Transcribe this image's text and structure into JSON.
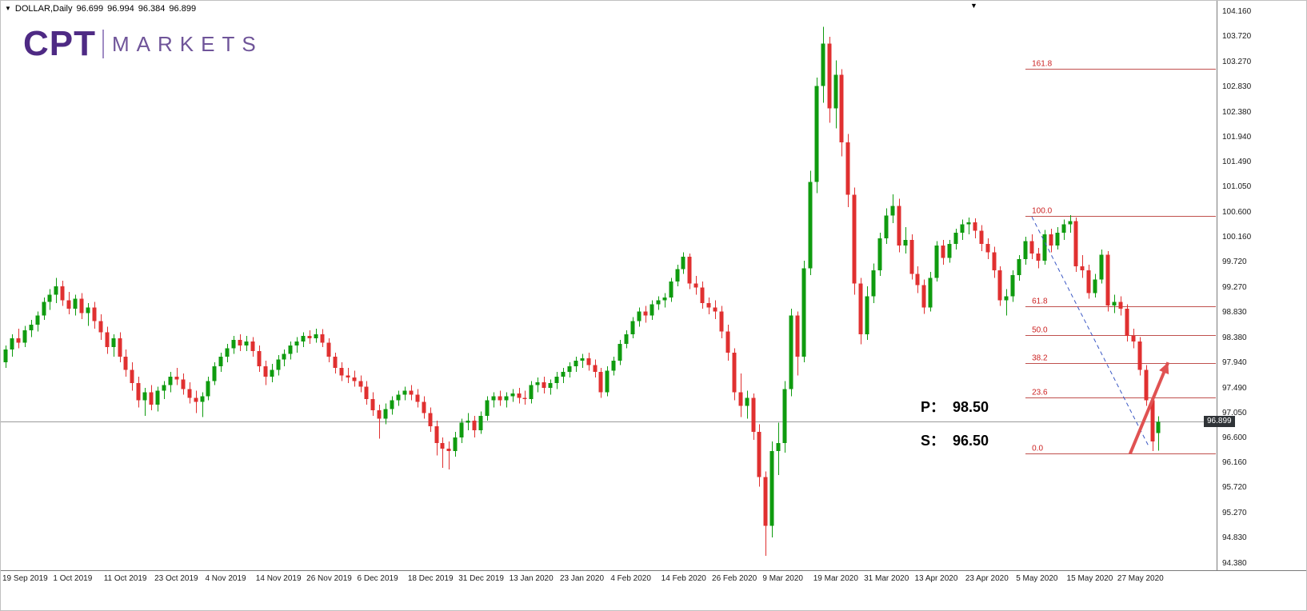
{
  "quote_bar": {
    "expander_icon": "▼",
    "symbol": "DOLLAR,Daily",
    "open": "96.699",
    "high": "96.994",
    "low": "96.384",
    "close": "96.899"
  },
  "logo": {
    "name": "CPT",
    "suffix": "MARKETS",
    "primary_color": "#4e2a84",
    "secondary_color": "#6f5499"
  },
  "chart_markers": {
    "shift_icon": "▼"
  },
  "annotations": {
    "pivot": "P：  98.50",
    "support": "S：  96.50"
  },
  "price_axis": {
    "current_price_label": "96.899"
  },
  "date_axis": {
    "tick_every": 8
  },
  "chart_data": {
    "type": "candlestick",
    "symbol": "DOLLAR",
    "timeframe": "Daily",
    "last_quote": {
      "open": 96.699,
      "high": 96.994,
      "low": 96.384,
      "close": 96.899
    },
    "current_price": 96.899,
    "price_range": [
      94.38,
      104.16
    ],
    "candle_spacing": 7.92,
    "grid": "off",
    "y_tick_labels": [
      "104.160",
      "103.720",
      "103.270",
      "102.830",
      "102.380",
      "101.940",
      "101.490",
      "101.050",
      "100.600",
      "100.160",
      "99.720",
      "99.270",
      "98.830",
      "98.380",
      "97.940",
      "97.490",
      "97.050",
      "96.600",
      "96.160",
      "95.720",
      "95.270",
      "94.830",
      "94.380"
    ],
    "x_tick_labels": [
      "19 Sep 2019",
      "1 Oct 2019",
      "11 Oct 2019",
      "23 Oct 2019",
      "4 Nov 2019",
      "14 Nov 2019",
      "26 Nov 2019",
      "6 Dec 2019",
      "18 Dec 2019",
      "31 Dec 2019",
      "13 Jan 2020",
      "23 Jan 2020",
      "4 Feb 2020",
      "14 Feb 2020",
      "26 Feb 2020",
      "9 Mar 2020",
      "19 Mar 2020",
      "31 Mar 2020",
      "13 Apr 2020",
      "23 Apr 2020",
      "5 May 2020",
      "15 May 2020",
      "27 May 2020"
    ],
    "fib_start_index": 161,
    "fib_levels": [
      {
        "label": "161.8",
        "price": 103.16
      },
      {
        "label": "100.0",
        "price": 100.55
      },
      {
        "label": "61.8",
        "price": 98.94
      },
      {
        "label": "50.0",
        "price": 98.44
      },
      {
        "label": "38.2",
        "price": 97.94
      },
      {
        "label": "23.6",
        "price": 97.33
      },
      {
        "label": "0.0",
        "price": 96.33
      }
    ],
    "trendline": {
      "from": {
        "index": 162,
        "price": 100.53
      },
      "to": {
        "index": 180.5,
        "price": 96.45
      }
    },
    "arrow": {
      "from": {
        "index": 177.5,
        "price": 96.33
      },
      "to": {
        "index": 183.5,
        "price": 97.95
      }
    },
    "support_resistance": {
      "pivot": 98.5,
      "support": 96.5
    },
    "colors": {
      "up": "#0f9b0f",
      "down": "#e03030",
      "fib": "#c0504d",
      "fib_label": "#cc2222",
      "trendline": "#3a57c4",
      "arrow": "#e05252",
      "current_line": "#9a9a9a",
      "badge_bg": "#2f3337"
    },
    "candles": [
      [
        97.95,
        98.25,
        97.85,
        98.18
      ],
      [
        98.18,
        98.45,
        98.05,
        98.38
      ],
      [
        98.38,
        98.55,
        98.2,
        98.3
      ],
      [
        98.3,
        98.6,
        98.22,
        98.52
      ],
      [
        98.52,
        98.7,
        98.4,
        98.62
      ],
      [
        98.62,
        98.85,
        98.5,
        98.78
      ],
      [
        98.78,
        99.1,
        98.7,
        99.02
      ],
      [
        99.02,
        99.25,
        98.88,
        99.15
      ],
      [
        99.15,
        99.45,
        99.0,
        99.3
      ],
      [
        99.3,
        99.4,
        98.95,
        99.05
      ],
      [
        99.05,
        99.2,
        98.8,
        98.9
      ],
      [
        98.9,
        99.15,
        98.78,
        99.08
      ],
      [
        99.08,
        99.18,
        98.72,
        98.82
      ],
      [
        98.82,
        99.0,
        98.6,
        98.92
      ],
      [
        98.92,
        99.02,
        98.55,
        98.68
      ],
      [
        98.68,
        98.8,
        98.35,
        98.48
      ],
      [
        98.48,
        98.58,
        98.1,
        98.22
      ],
      [
        98.22,
        98.45,
        98.05,
        98.38
      ],
      [
        98.38,
        98.48,
        97.95,
        98.05
      ],
      [
        98.05,
        98.18,
        97.7,
        97.82
      ],
      [
        97.82,
        97.95,
        97.45,
        97.58
      ],
      [
        97.58,
        97.7,
        97.15,
        97.28
      ],
      [
        97.28,
        97.5,
        97.0,
        97.42
      ],
      [
        97.42,
        97.55,
        97.1,
        97.2
      ],
      [
        97.2,
        97.52,
        97.08,
        97.45
      ],
      [
        97.45,
        97.62,
        97.3,
        97.55
      ],
      [
        97.55,
        97.78,
        97.42,
        97.7
      ],
      [
        97.7,
        97.85,
        97.55,
        97.65
      ],
      [
        97.65,
        97.75,
        97.38,
        97.48
      ],
      [
        97.48,
        97.6,
        97.22,
        97.32
      ],
      [
        97.32,
        97.45,
        97.05,
        97.25
      ],
      [
        97.25,
        97.42,
        96.98,
        97.35
      ],
      [
        97.35,
        97.7,
        97.28,
        97.62
      ],
      [
        97.62,
        97.95,
        97.55,
        97.88
      ],
      [
        97.88,
        98.12,
        97.78,
        98.05
      ],
      [
        98.05,
        98.28,
        97.95,
        98.2
      ],
      [
        98.2,
        98.42,
        98.1,
        98.35
      ],
      [
        98.35,
        98.45,
        98.15,
        98.25
      ],
      [
        98.25,
        98.42,
        98.15,
        98.32
      ],
      [
        98.32,
        98.4,
        98.05,
        98.15
      ],
      [
        98.15,
        98.25,
        97.78,
        97.88
      ],
      [
        97.88,
        97.98,
        97.55,
        97.7
      ],
      [
        97.7,
        97.92,
        97.6,
        97.82
      ],
      [
        97.82,
        98.08,
        97.72,
        98.0
      ],
      [
        98.0,
        98.18,
        97.88,
        98.1
      ],
      [
        98.1,
        98.32,
        98.0,
        98.25
      ],
      [
        98.25,
        98.4,
        98.12,
        98.32
      ],
      [
        98.32,
        98.48,
        98.22,
        98.42
      ],
      [
        98.42,
        98.52,
        98.28,
        98.38
      ],
      [
        98.38,
        98.55,
        98.3,
        98.45
      ],
      [
        98.45,
        98.54,
        98.22,
        98.3
      ],
      [
        98.3,
        98.38,
        97.95,
        98.05
      ],
      [
        98.05,
        98.12,
        97.75,
        97.85
      ],
      [
        97.85,
        97.95,
        97.62,
        97.72
      ],
      [
        97.72,
        97.85,
        97.58,
        97.68
      ],
      [
        97.68,
        97.8,
        97.52,
        97.62
      ],
      [
        97.62,
        97.72,
        97.42,
        97.52
      ],
      [
        97.52,
        97.62,
        97.2,
        97.3
      ],
      [
        97.3,
        97.42,
        97.0,
        97.1
      ],
      [
        97.1,
        97.2,
        96.6,
        96.95
      ],
      [
        96.95,
        97.22,
        96.85,
        97.12
      ],
      [
        97.12,
        97.35,
        97.02,
        97.28
      ],
      [
        97.28,
        97.45,
        97.18,
        97.38
      ],
      [
        97.38,
        97.52,
        97.28,
        97.45
      ],
      [
        97.45,
        97.55,
        97.28,
        97.38
      ],
      [
        97.38,
        97.48,
        97.15,
        97.25
      ],
      [
        97.25,
        97.35,
        96.95,
        97.05
      ],
      [
        97.05,
        97.15,
        96.72,
        96.82
      ],
      [
        96.82,
        96.92,
        96.3,
        96.52
      ],
      [
        96.52,
        96.62,
        96.08,
        96.42
      ],
      [
        96.42,
        96.55,
        96.05,
        96.38
      ],
      [
        96.38,
        96.72,
        96.28,
        96.62
      ],
      [
        96.62,
        96.95,
        96.52,
        96.88
      ],
      [
        96.88,
        97.05,
        96.75,
        96.92
      ],
      [
        96.92,
        97.0,
        96.62,
        96.75
      ],
      [
        96.75,
        97.08,
        96.68,
        97.0
      ],
      [
        97.0,
        97.35,
        96.92,
        97.28
      ],
      [
        97.28,
        97.42,
        97.15,
        97.35
      ],
      [
        97.35,
        97.45,
        97.18,
        97.28
      ],
      [
        97.28,
        97.42,
        97.15,
        97.35
      ],
      [
        97.35,
        97.48,
        97.25,
        97.4
      ],
      [
        97.4,
        97.5,
        97.22,
        97.32
      ],
      [
        97.32,
        97.45,
        97.2,
        97.3
      ],
      [
        97.3,
        97.62,
        97.22,
        97.55
      ],
      [
        97.55,
        97.68,
        97.42,
        97.6
      ],
      [
        97.6,
        97.7,
        97.4,
        97.5
      ],
      [
        97.5,
        97.65,
        97.38,
        97.58
      ],
      [
        97.58,
        97.78,
        97.48,
        97.7
      ],
      [
        97.7,
        97.85,
        97.58,
        97.78
      ],
      [
        97.78,
        97.95,
        97.68,
        97.88
      ],
      [
        97.88,
        98.05,
        97.78,
        97.98
      ],
      [
        97.98,
        98.1,
        97.85,
        98.02
      ],
      [
        98.02,
        98.12,
        97.8,
        97.9
      ],
      [
        97.9,
        98.0,
        97.68,
        97.78
      ],
      [
        97.78,
        97.85,
        97.32,
        97.42
      ],
      [
        97.42,
        97.88,
        97.35,
        97.8
      ],
      [
        97.8,
        98.05,
        97.72,
        97.98
      ],
      [
        97.98,
        98.35,
        97.9,
        98.28
      ],
      [
        98.28,
        98.52,
        98.2,
        98.45
      ],
      [
        98.45,
        98.75,
        98.38,
        98.68
      ],
      [
        98.68,
        98.92,
        98.58,
        98.85
      ],
      [
        98.85,
        98.95,
        98.65,
        98.78
      ],
      [
        98.78,
        99.05,
        98.7,
        98.98
      ],
      [
        98.98,
        99.12,
        98.88,
        99.05
      ],
      [
        99.05,
        99.18,
        98.92,
        99.1
      ],
      [
        99.1,
        99.45,
        99.02,
        99.38
      ],
      [
        99.38,
        99.68,
        99.3,
        99.6
      ],
      [
        99.6,
        99.9,
        99.52,
        99.82
      ],
      [
        99.82,
        99.88,
        99.25,
        99.35
      ],
      [
        99.35,
        99.48,
        99.15,
        99.28
      ],
      [
        99.28,
        99.38,
        98.9,
        99.0
      ],
      [
        99.0,
        99.1,
        98.8,
        98.92
      ],
      [
        98.92,
        99.05,
        98.72,
        98.85
      ],
      [
        98.85,
        98.95,
        98.38,
        98.5
      ],
      [
        98.5,
        98.62,
        97.98,
        98.12
      ],
      [
        98.12,
        98.2,
        97.28,
        97.42
      ],
      [
        97.42,
        97.75,
        96.98,
        97.18
      ],
      [
        97.18,
        97.45,
        96.95,
        97.32
      ],
      [
        97.32,
        97.4,
        96.58,
        96.72
      ],
      [
        96.72,
        96.85,
        95.75,
        95.92
      ],
      [
        95.92,
        96.02,
        94.52,
        95.05
      ],
      [
        95.05,
        96.55,
        94.85,
        96.38
      ],
      [
        96.38,
        96.88,
        95.95,
        96.52
      ],
      [
        96.52,
        97.62,
        96.35,
        97.48
      ],
      [
        97.48,
        98.9,
        97.35,
        98.78
      ],
      [
        98.78,
        98.85,
        97.72,
        98.05
      ],
      [
        98.05,
        99.75,
        97.95,
        99.62
      ],
      [
        99.62,
        101.35,
        99.5,
        101.15
      ],
      [
        101.15,
        103.0,
        100.95,
        102.85
      ],
      [
        102.85,
        103.9,
        102.55,
        103.6
      ],
      [
        103.6,
        103.72,
        102.2,
        102.45
      ],
      [
        102.45,
        103.3,
        102.1,
        103.05
      ],
      [
        103.05,
        103.15,
        101.6,
        101.85
      ],
      [
        101.85,
        102.0,
        100.7,
        100.92
      ],
      [
        100.92,
        101.05,
        99.15,
        99.35
      ],
      [
        99.35,
        99.45,
        98.27,
        98.45
      ],
      [
        98.45,
        99.3,
        98.35,
        99.12
      ],
      [
        99.12,
        99.7,
        99.0,
        99.58
      ],
      [
        99.58,
        100.25,
        99.48,
        100.15
      ],
      [
        100.15,
        100.68,
        100.05,
        100.55
      ],
      [
        100.55,
        100.93,
        100.42,
        100.72
      ],
      [
        100.72,
        100.85,
        99.9,
        100.02
      ],
      [
        100.02,
        100.35,
        99.88,
        100.12
      ],
      [
        100.12,
        100.22,
        99.42,
        99.52
      ],
      [
        99.52,
        99.65,
        99.18,
        99.32
      ],
      [
        99.32,
        99.42,
        98.81,
        98.92
      ],
      [
        98.92,
        99.55,
        98.85,
        99.45
      ],
      [
        99.45,
        100.1,
        99.38,
        100.02
      ],
      [
        100.02,
        100.12,
        99.68,
        99.8
      ],
      [
        99.8,
        100.12,
        99.72,
        100.05
      ],
      [
        100.05,
        100.32,
        99.95,
        100.25
      ],
      [
        100.25,
        100.48,
        100.12,
        100.4
      ],
      [
        100.4,
        100.52,
        100.22,
        100.43
      ],
      [
        100.43,
        100.5,
        100.15,
        100.28
      ],
      [
        100.28,
        100.38,
        99.92,
        100.05
      ],
      [
        100.05,
        100.15,
        99.78,
        99.9
      ],
      [
        99.9,
        100.0,
        99.45,
        99.58
      ],
      [
        99.58,
        99.65,
        98.95,
        99.05
      ],
      [
        99.05,
        99.25,
        98.78,
        99.12
      ],
      [
        99.12,
        99.58,
        99.02,
        99.5
      ],
      [
        99.5,
        99.85,
        99.4,
        99.78
      ],
      [
        99.78,
        100.18,
        99.68,
        100.1
      ],
      [
        100.1,
        100.22,
        99.78,
        99.88
      ],
      [
        99.88,
        99.98,
        99.62,
        99.75
      ],
      [
        99.75,
        100.3,
        99.68,
        100.22
      ],
      [
        100.22,
        100.32,
        99.9,
        100.02
      ],
      [
        100.02,
        100.35,
        99.95,
        100.25
      ],
      [
        100.25,
        100.48,
        100.12,
        100.4
      ],
      [
        100.4,
        100.56,
        100.25,
        100.45
      ],
      [
        100.45,
        100.52,
        99.55,
        99.65
      ],
      [
        99.65,
        99.85,
        99.45,
        99.58
      ],
      [
        99.58,
        99.68,
        99.08,
        99.18
      ],
      [
        99.18,
        99.52,
        99.1,
        99.42
      ],
      [
        99.42,
        99.95,
        99.35,
        99.86
      ],
      [
        99.86,
        99.92,
        98.85,
        98.96
      ],
      [
        98.96,
        99.15,
        98.82,
        99.02
      ],
      [
        99.02,
        99.12,
        98.78,
        98.9
      ],
      [
        98.9,
        98.98,
        98.32,
        98.42
      ],
      [
        98.42,
        98.55,
        98.2,
        98.32
      ],
      [
        98.32,
        98.4,
        97.72,
        97.82
      ],
      [
        97.82,
        97.9,
        97.18,
        97.28
      ],
      [
        97.28,
        97.35,
        96.38,
        96.55
      ],
      [
        96.699,
        96.994,
        96.384,
        96.899
      ]
    ]
  }
}
